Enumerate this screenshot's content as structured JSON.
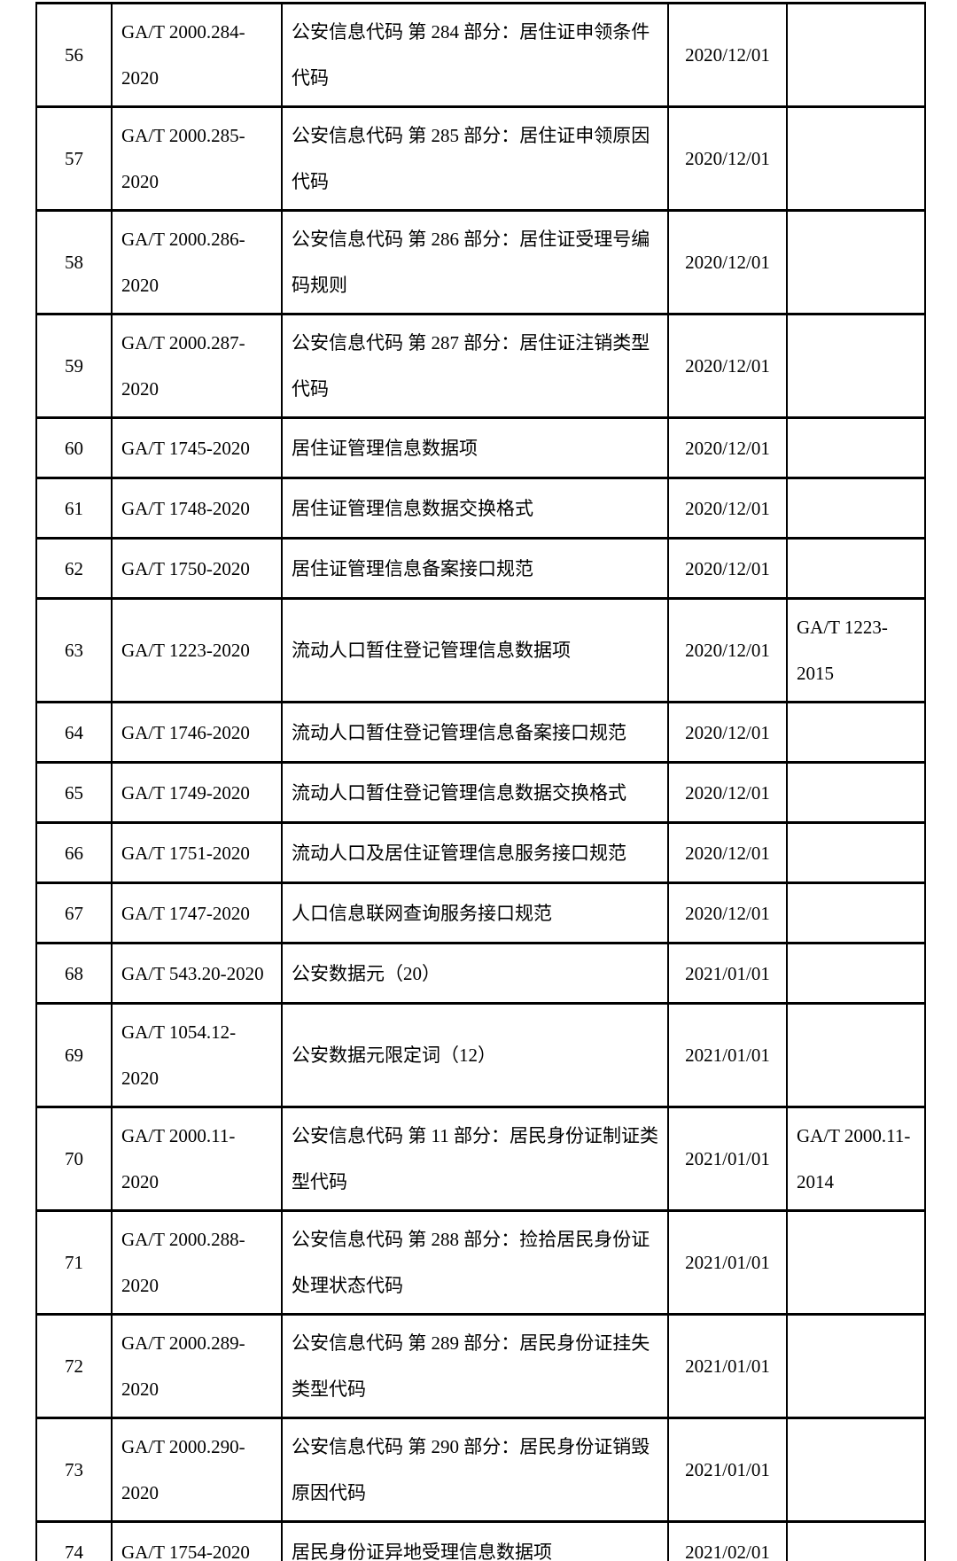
{
  "table": {
    "rows": [
      {
        "no": "56",
        "code": [
          "GA/T 2000.284-",
          "2020"
        ],
        "name": [
          "公安信息代码 第 284 部分：居住证申领条件",
          "代码"
        ],
        "date": "2020/12/01",
        "replaced": []
      },
      {
        "no": "57",
        "code": [
          "GA/T 2000.285-",
          "2020"
        ],
        "name": [
          "公安信息代码 第 285 部分：居住证申领原因",
          "代码"
        ],
        "date": "2020/12/01",
        "replaced": []
      },
      {
        "no": "58",
        "code": [
          "GA/T 2000.286-",
          "2020"
        ],
        "name": [
          "公安信息代码 第 286 部分：居住证受理号编",
          "码规则"
        ],
        "date": "2020/12/01",
        "replaced": []
      },
      {
        "no": "59",
        "code": [
          "GA/T 2000.287-",
          "2020"
        ],
        "name": [
          "公安信息代码 第 287 部分：居住证注销类型",
          "代码"
        ],
        "date": "2020/12/01",
        "replaced": []
      },
      {
        "no": "60",
        "code": "GA/T 1745-2020",
        "name": "居住证管理信息数据项",
        "date": "2020/12/01",
        "replaced": []
      },
      {
        "no": "61",
        "code": "GA/T 1748-2020",
        "name": "居住证管理信息数据交换格式",
        "date": "2020/12/01",
        "replaced": []
      },
      {
        "no": "62",
        "code": "GA/T 1750-2020",
        "name": "居住证管理信息备案接口规范",
        "date": "2020/12/01",
        "replaced": []
      },
      {
        "no": "63",
        "code": "GA/T 1223-2020",
        "name": "流动人口暂住登记管理信息数据项",
        "date": "2020/12/01",
        "replaced": [
          "GA/T 1223-",
          "2015"
        ]
      },
      {
        "no": "64",
        "code": "GA/T 1746-2020",
        "name": "流动人口暂住登记管理信息备案接口规范",
        "date": "2020/12/01",
        "replaced": []
      },
      {
        "no": "65",
        "code": "GA/T 1749-2020",
        "name": "流动人口暂住登记管理信息数据交换格式",
        "date": "2020/12/01",
        "replaced": []
      },
      {
        "no": "66",
        "code": "GA/T 1751-2020",
        "name": "流动人口及居住证管理信息服务接口规范",
        "date": "2020/12/01",
        "replaced": []
      },
      {
        "no": "67",
        "code": "GA/T 1747-2020",
        "name": "人口信息联网查询服务接口规范",
        "date": "2020/12/01",
        "replaced": []
      },
      {
        "no": "68",
        "code": "GA/T 543.20-2020",
        "name": "公安数据元（20）",
        "date": "2021/01/01",
        "replaced": []
      },
      {
        "no": "69",
        "code": [
          "GA/T 1054.12-",
          "2020"
        ],
        "name": "公安数据元限定词（12）",
        "date": "2021/01/01",
        "replaced": []
      },
      {
        "no": "70",
        "code": [
          "GA/T 2000.11-",
          "2020"
        ],
        "name": [
          "公安信息代码 第 11 部分：居民身份证制证类",
          "型代码"
        ],
        "date": "2021/01/01",
        "replaced": [
          "GA/T 2000.11-",
          "2014"
        ]
      },
      {
        "no": "71",
        "code": [
          "GA/T 2000.288-",
          "2020"
        ],
        "name": [
          "公安信息代码 第 288 部分：捡拾居民身份证",
          "处理状态代码"
        ],
        "date": "2021/01/01",
        "replaced": []
      },
      {
        "no": "72",
        "code": [
          "GA/T 2000.289-",
          "2020"
        ],
        "name": [
          "公安信息代码 第 289 部分：居民身份证挂失",
          "类型代码"
        ],
        "date": "2021/01/01",
        "replaced": []
      },
      {
        "no": "73",
        "code": [
          "GA/T 2000.290-",
          "2020"
        ],
        "name": [
          "公安信息代码 第 290 部分：居民身份证销毁",
          "原因代码"
        ],
        "date": "2021/01/01",
        "replaced": []
      },
      {
        "no": "74",
        "code": "GA/T 1754-2020",
        "name": "居民身份证异地受理信息数据项",
        "date": "2021/02/01",
        "replaced": []
      }
    ]
  }
}
